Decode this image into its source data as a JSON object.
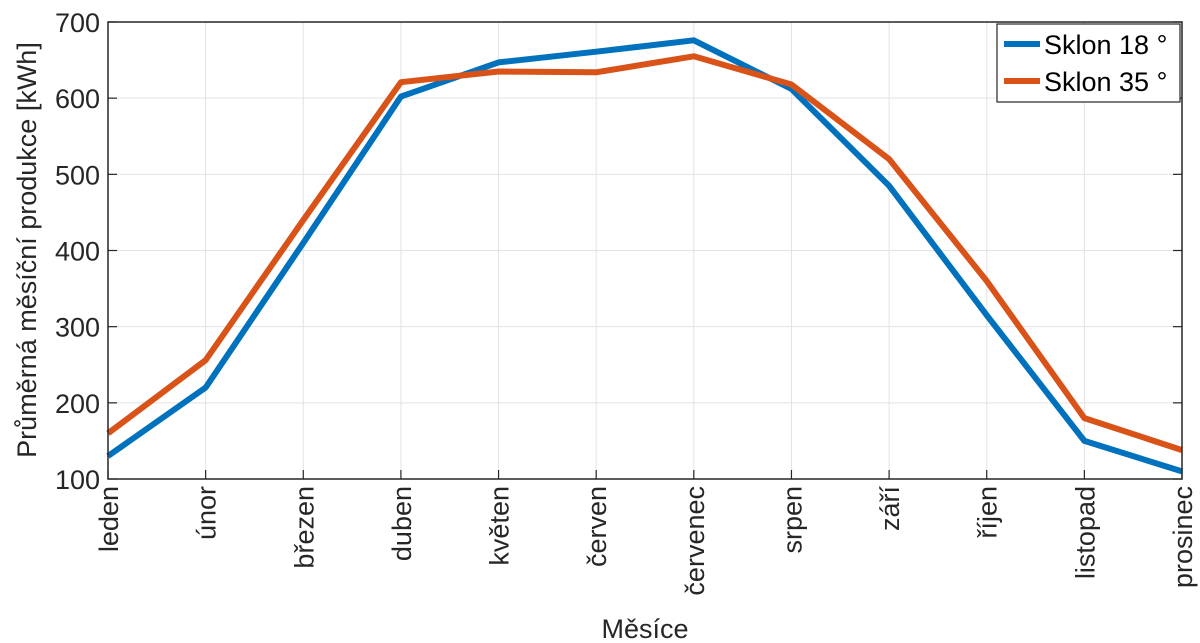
{
  "chart_data": {
    "type": "line",
    "title": "",
    "xlabel": "Měsíce",
    "ylabel": "Průměrná měsíční produkce [kWh]",
    "categories": [
      "leden",
      "únor",
      "březen",
      "duben",
      "květen",
      "červen",
      "červenec",
      "srpen",
      "září",
      "říjen",
      "listopad",
      "prosinec"
    ],
    "ylim": [
      100,
      700
    ],
    "yticks": [
      "100",
      "200",
      "300",
      "400",
      "500",
      "600",
      "700"
    ],
    "grid": true,
    "legend_position": "top-right",
    "series": [
      {
        "name": "Sklon 18 °",
        "color": "#0072BD",
        "values": [
          130,
          220,
          410,
          602,
          647,
          661,
          676,
          612,
          485,
          315,
          150,
          110
        ]
      },
      {
        "name": "Sklon 35 °",
        "color": "#D95319",
        "values": [
          160,
          256,
          440,
          621,
          635,
          634,
          655,
          618,
          520,
          360,
          180,
          138
        ]
      }
    ]
  }
}
